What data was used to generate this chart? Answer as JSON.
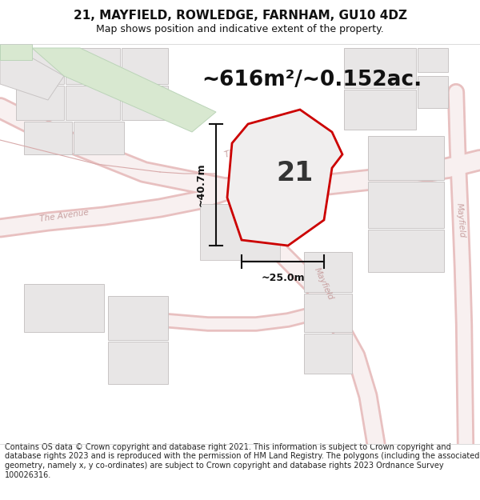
{
  "title": "21, MAYFIELD, ROWLEDGE, FARNHAM, GU10 4DZ",
  "subtitle": "Map shows position and indicative extent of the property.",
  "area_text": "~616m²/~0.152ac.",
  "label_21": "21",
  "dim_height": "~40.7m",
  "dim_width": "~25.0m",
  "footer": "Contains OS data © Crown copyright and database right 2021. This information is subject to Crown copyright and database rights 2023 and is reproduced with the permission of HM Land Registry. The polygons (including the associated geometry, namely x, y co-ordinates) are subject to Crown copyright and database rights 2023 Ordnance Survey 100026316.",
  "bg_color": "#ffffff",
  "map_bg": "#ffffff",
  "road_outline_color": "#e8c0c0",
  "road_fill_color": "#f8f0f0",
  "parcel_outline": "#d8aaaa",
  "parcel_fill": "#eeeeee",
  "gray_block_fill": "#e8e6e6",
  "gray_block_outline": "#c8c4c4",
  "green_fill": "#d8e8d0",
  "green_outline": "#bbd4b8",
  "property_edge": "#cc0000",
  "property_fill": "#f0eeee",
  "dim_color": "#111111",
  "title_color": "#111111",
  "footer_color": "#222222",
  "street_label_color": "#c8a0a0",
  "title_fontsize": 11,
  "subtitle_fontsize": 9,
  "area_fontsize": 19,
  "label_fontsize": 24,
  "footer_fontsize": 7.0
}
